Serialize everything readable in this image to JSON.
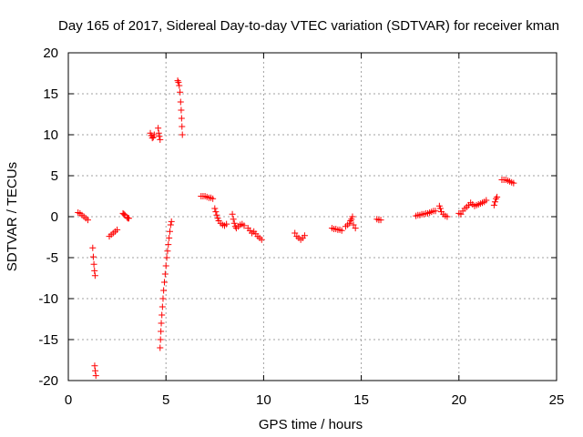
{
  "chart_data": {
    "type": "scatter",
    "title": "Day 165 of 2017, Sidereal Day-to-day VTEC variation (SDTVAR) for receiver kman",
    "xlabel": "GPS time / hours",
    "ylabel": "SDTVAR / TECUs",
    "xlim": [
      0,
      25
    ],
    "ylim": [
      -20,
      20
    ],
    "xticks": [
      0,
      5,
      10,
      15,
      20,
      25
    ],
    "yticks": [
      -20,
      -15,
      -10,
      -5,
      0,
      5,
      10,
      15,
      20
    ],
    "grid": true,
    "marker": "+",
    "color": "#ff0000",
    "series": [
      {
        "name": "SDTVAR",
        "segments": [
          [
            [
              0.5,
              0.5
            ],
            [
              0.6,
              0.4
            ],
            [
              0.7,
              0.2
            ],
            [
              0.8,
              0.0
            ],
            [
              0.9,
              -0.2
            ],
            [
              1.0,
              -0.4
            ]
          ],
          [
            [
              1.25,
              -3.8
            ],
            [
              1.28,
              -4.9
            ],
            [
              1.31,
              -5.8
            ],
            [
              1.34,
              -6.6
            ],
            [
              1.37,
              -7.2
            ]
          ],
          [
            [
              1.35,
              -18.2
            ],
            [
              1.38,
              -18.8
            ],
            [
              1.41,
              -19.4
            ]
          ],
          [
            [
              2.1,
              -2.4
            ],
            [
              2.2,
              -2.2
            ],
            [
              2.3,
              -2.0
            ],
            [
              2.4,
              -1.8
            ],
            [
              2.5,
              -1.6
            ]
          ],
          [
            [
              2.8,
              0.4
            ],
            [
              2.85,
              0.3
            ],
            [
              2.9,
              0.2
            ]
          ],
          [
            [
              3.0,
              -0.1
            ],
            [
              3.05,
              -0.2
            ],
            [
              3.1,
              -0.2
            ]
          ],
          [
            [
              4.2,
              10.2
            ],
            [
              4.25,
              9.9
            ],
            [
              4.3,
              9.6
            ],
            [
              4.35,
              9.7
            ],
            [
              4.4,
              10.0
            ]
          ],
          [
            [
              4.6,
              10.8
            ],
            [
              4.63,
              10.2
            ],
            [
              4.66,
              9.8
            ],
            [
              4.7,
              9.4
            ]
          ],
          [
            [
              4.7,
              -16.0
            ],
            [
              4.72,
              -15.0
            ],
            [
              4.74,
              -14.0
            ],
            [
              4.76,
              -13.0
            ],
            [
              4.79,
              -12.0
            ],
            [
              4.82,
              -11.0
            ],
            [
              4.85,
              -10.0
            ],
            [
              4.88,
              -9.0
            ],
            [
              4.92,
              -8.0
            ],
            [
              4.96,
              -7.0
            ],
            [
              5.0,
              -6.0
            ],
            [
              5.04,
              -5.0
            ],
            [
              5.08,
              -4.2
            ],
            [
              5.12,
              -3.4
            ],
            [
              5.16,
              -2.6
            ],
            [
              5.2,
              -1.8
            ],
            [
              5.24,
              -1.0
            ],
            [
              5.28,
              -0.6
            ]
          ],
          [
            [
              5.6,
              16.6
            ],
            [
              5.64,
              16.4
            ],
            [
              5.68,
              16.0
            ],
            [
              5.72,
              15.2
            ],
            [
              5.75,
              14.0
            ],
            [
              5.78,
              13.0
            ],
            [
              5.8,
              12.0
            ],
            [
              5.82,
              11.0
            ],
            [
              5.84,
              10.0
            ]
          ],
          [
            [
              6.8,
              2.5
            ],
            [
              6.9,
              2.5
            ],
            [
              7.0,
              2.5
            ],
            [
              7.1,
              2.4
            ],
            [
              7.2,
              2.3
            ],
            [
              7.3,
              2.3
            ],
            [
              7.4,
              2.2
            ]
          ],
          [
            [
              7.5,
              1.0
            ],
            [
              7.55,
              0.6
            ],
            [
              7.6,
              0.2
            ],
            [
              7.65,
              -0.2
            ],
            [
              7.7,
              -0.5
            ],
            [
              7.8,
              -0.8
            ],
            [
              7.9,
              -1.0
            ],
            [
              8.0,
              -1.1
            ],
            [
              8.1,
              -0.9
            ]
          ],
          [
            [
              8.4,
              0.3
            ],
            [
              8.45,
              -0.3
            ],
            [
              8.5,
              -0.8
            ],
            [
              8.55,
              -1.2
            ],
            [
              8.6,
              -1.4
            ],
            [
              8.7,
              -1.2
            ],
            [
              8.8,
              -1.0
            ],
            [
              8.9,
              -0.9
            ],
            [
              9.0,
              -1.1
            ]
          ],
          [
            [
              9.2,
              -1.4
            ],
            [
              9.3,
              -1.7
            ],
            [
              9.4,
              -2.0
            ],
            [
              9.5,
              -1.8
            ],
            [
              9.6,
              -2.1
            ],
            [
              9.7,
              -2.4
            ],
            [
              9.8,
              -2.6
            ],
            [
              9.9,
              -2.8
            ]
          ],
          [
            [
              11.6,
              -2.0
            ],
            [
              11.7,
              -2.4
            ],
            [
              11.8,
              -2.6
            ],
            [
              11.9,
              -2.8
            ],
            [
              12.0,
              -2.6
            ],
            [
              12.1,
              -2.3
            ]
          ],
          [
            [
              13.5,
              -1.4
            ],
            [
              13.6,
              -1.5
            ],
            [
              13.7,
              -1.5
            ],
            [
              13.8,
              -1.6
            ],
            [
              13.9,
              -1.6
            ],
            [
              14.0,
              -1.7
            ]
          ],
          [
            [
              14.2,
              -1.2
            ],
            [
              14.3,
              -1.0
            ],
            [
              14.4,
              -0.8
            ],
            [
              14.45,
              -0.5
            ],
            [
              14.5,
              -0.3
            ],
            [
              14.55,
              0.0
            ],
            [
              14.6,
              -1.0
            ],
            [
              14.7,
              -1.4
            ]
          ],
          [
            [
              15.8,
              -0.3
            ],
            [
              15.9,
              -0.4
            ],
            [
              16.0,
              -0.4
            ]
          ],
          [
            [
              17.8,
              0.1
            ],
            [
              17.9,
              0.2
            ],
            [
              18.0,
              0.2
            ],
            [
              18.1,
              0.3
            ],
            [
              18.2,
              0.3
            ],
            [
              18.3,
              0.4
            ],
            [
              18.4,
              0.4
            ],
            [
              18.5,
              0.5
            ],
            [
              18.6,
              0.6
            ],
            [
              18.7,
              0.7
            ],
            [
              18.8,
              0.7
            ]
          ],
          [
            [
              19.0,
              1.3
            ],
            [
              19.05,
              1.0
            ],
            [
              19.1,
              0.6
            ],
            [
              19.2,
              0.3
            ],
            [
              19.3,
              0.1
            ],
            [
              19.4,
              0.0
            ]
          ],
          [
            [
              20.0,
              0.4
            ],
            [
              20.1,
              0.3
            ],
            [
              20.2,
              0.7
            ],
            [
              20.3,
              1.0
            ],
            [
              20.4,
              1.2
            ],
            [
              20.5,
              1.4
            ],
            [
              20.6,
              1.7
            ],
            [
              20.7,
              1.5
            ],
            [
              20.8,
              1.3
            ],
            [
              20.9,
              1.4
            ],
            [
              21.0,
              1.5
            ],
            [
              21.1,
              1.6
            ],
            [
              21.2,
              1.7
            ],
            [
              21.3,
              1.8
            ],
            [
              21.4,
              2.0
            ]
          ],
          [
            [
              21.8,
              1.4
            ],
            [
              21.85,
              1.8
            ],
            [
              21.9,
              2.2
            ],
            [
              21.95,
              2.4
            ]
          ],
          [
            [
              22.2,
              4.5
            ],
            [
              22.3,
              4.5
            ],
            [
              22.4,
              4.5
            ],
            [
              22.5,
              4.4
            ],
            [
              22.6,
              4.3
            ],
            [
              22.7,
              4.2
            ],
            [
              22.8,
              4.1
            ]
          ]
        ]
      }
    ]
  }
}
